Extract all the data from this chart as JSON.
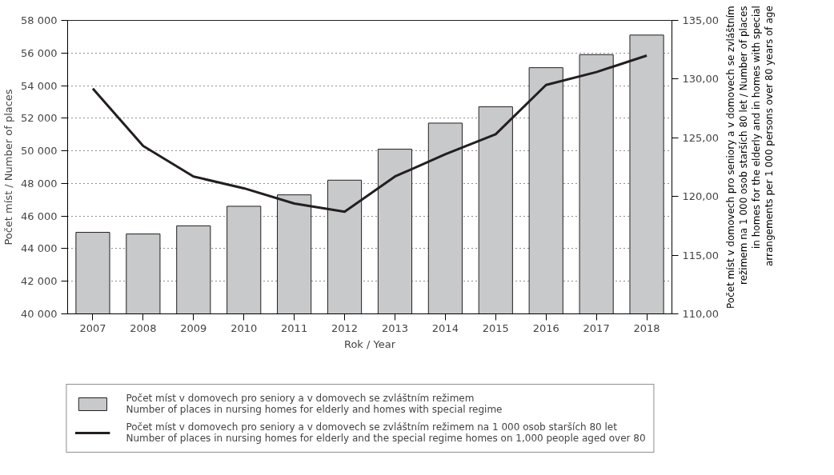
{
  "chart_data": {
    "type": "bar",
    "categories": [
      "2007",
      "2008",
      "2009",
      "2010",
      "2011",
      "2012",
      "2013",
      "2014",
      "2015",
      "2016",
      "2017",
      "2018"
    ],
    "series": [
      {
        "name": "Počet míst v domovech pro seniory a v domovech se zvláštním režimem\nNumber of places in nursing homes for elderly and homes with special regime",
        "color": "#c8c9ca",
        "values": [
          45000,
          44900,
          45400,
          46600,
          47300,
          48200,
          50100,
          51700,
          52700,
          55100,
          55900,
          57100
        ]
      },
      {
        "name": "Počet míst v domovech pro seniory a v domovech se zvláštním režimem na 1 000 osob starších 80 let\nNumber of places in nursing homes for elderly and the special regime homes on 1,000 people aged over 80",
        "type": "line",
        "axis": "y2",
        "color": "#231f20",
        "values": [
          129.2,
          124.3,
          121.7,
          120.7,
          119.4,
          118.7,
          121.7,
          123.6,
          125.3,
          129.5,
          130.6,
          132.0
        ]
      }
    ],
    "xlabel": "Rok / Year",
    "ylabel": "Počet míst / Number of places",
    "y2label": "Počet míst v domovech pro seniory a v domovech se zvláštním\nrežimem na 1 000 osob starších 80 let / Number of places\nin homes for the elderly and in homes with special\narrangements per 1 000 persons over 80 years of age",
    "ylim": [
      40000,
      58000
    ],
    "yticks": [
      {
        "value": 40000,
        "label": "40 000"
      },
      {
        "value": 42000,
        "label": "42 000"
      },
      {
        "value": 44000,
        "label": "44 000"
      },
      {
        "value": 46000,
        "label": "46 000"
      },
      {
        "value": 48000,
        "label": "48 000"
      },
      {
        "value": 50000,
        "label": "50 000"
      },
      {
        "value": 52000,
        "label": "52 000"
      },
      {
        "value": 54000,
        "label": "54 000"
      },
      {
        "value": 56000,
        "label": "56 000"
      },
      {
        "value": 58000,
        "label": "58 000"
      }
    ],
    "y2lim": [
      110,
      135
    ],
    "y2ticks": [
      {
        "value": 110,
        "label": "110,00"
      },
      {
        "value": 115,
        "label": "115,00"
      },
      {
        "value": 120,
        "label": "120,00"
      },
      {
        "value": 125,
        "label": "125,00"
      },
      {
        "value": 130,
        "label": "130,00"
      },
      {
        "value": 135,
        "label": "135,00"
      }
    ],
    "grid": "y",
    "legend": "bottom",
    "marker": "none",
    "line_style": "solid"
  }
}
